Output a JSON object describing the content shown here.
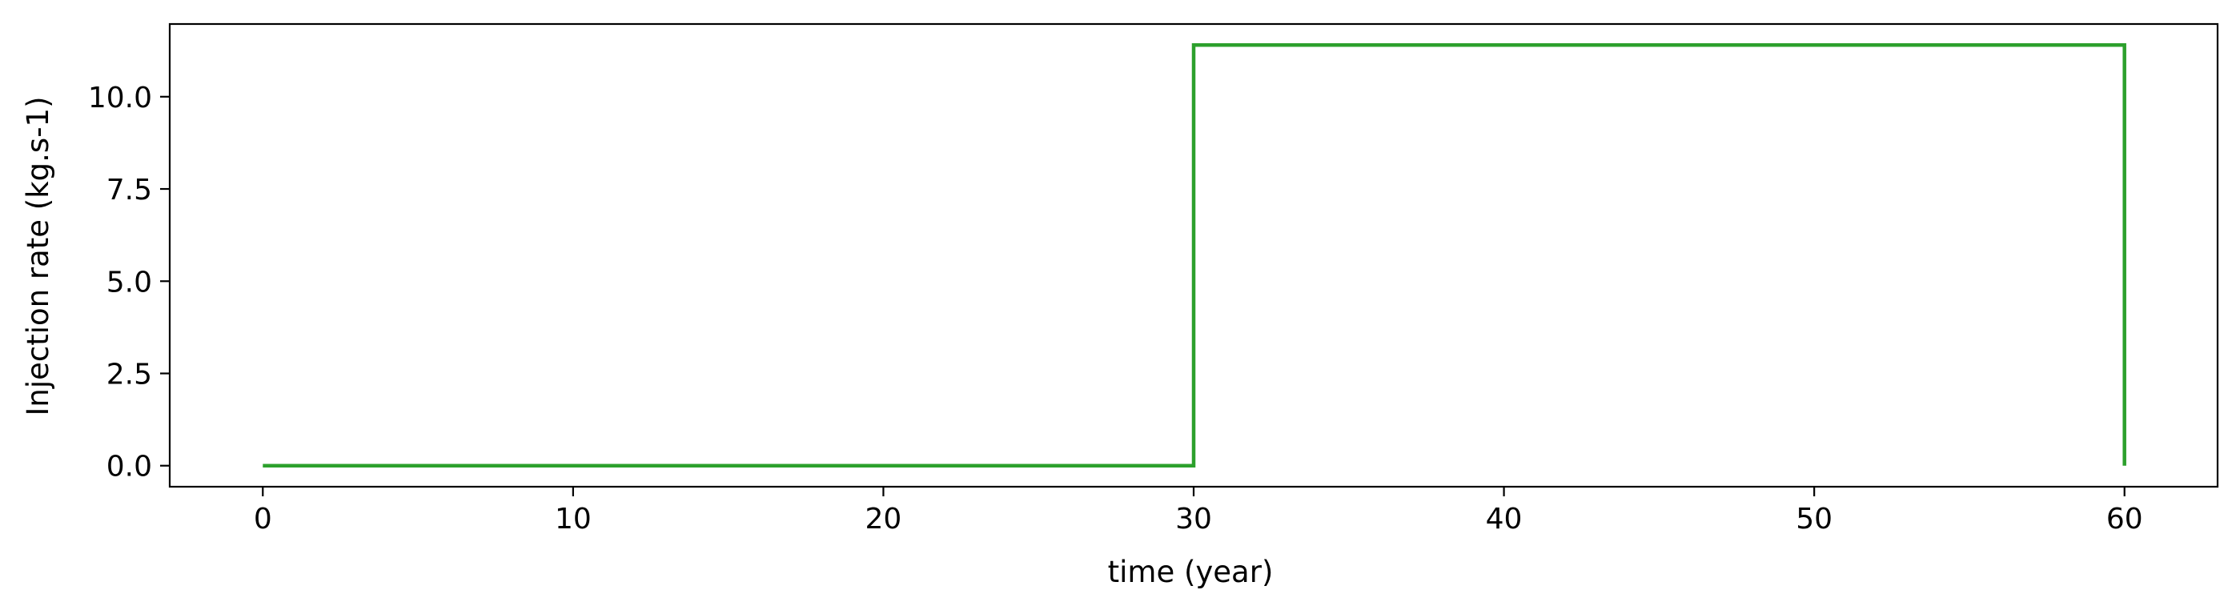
{
  "chart_data": {
    "type": "line",
    "title": "",
    "xlabel": "time (year)",
    "ylabel": "Injection rate (kg.s-1)",
    "xlim": [
      -3,
      63
    ],
    "ylim": [
      -0.57,
      11.97
    ],
    "xticks": [
      0,
      10,
      20,
      30,
      40,
      50,
      60
    ],
    "yticks": [
      0.0,
      2.5,
      5.0,
      7.5,
      10.0
    ],
    "xtick_labels": [
      "0",
      "10",
      "20",
      "30",
      "40",
      "50",
      "60"
    ],
    "ytick_labels": [
      "0.0",
      "2.5",
      "5.0",
      "7.5",
      "10.0"
    ],
    "grid": false,
    "legend": "none",
    "series": [
      {
        "color": "#2ca02c",
        "x": [
          0,
          30,
          30,
          60,
          60
        ],
        "y": [
          0,
          0,
          11.4,
          11.4,
          0
        ]
      }
    ]
  }
}
